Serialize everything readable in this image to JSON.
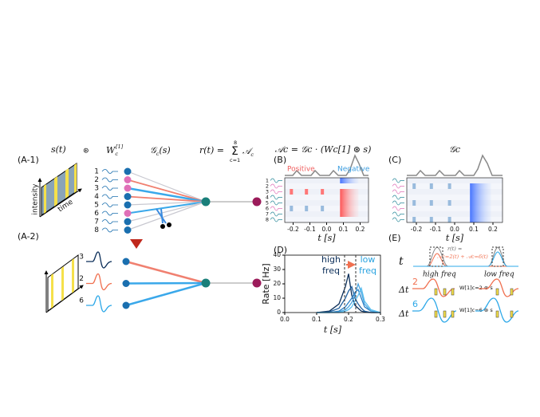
{
  "panel_a1": {
    "label": "(A-1)",
    "s": "s(t)",
    "conv": "⊛",
    "w": "W",
    "w_sub": "c",
    "w_sup": "[1]",
    "g": "𝒢",
    "g_sub": "c",
    "g_arg": "(s)",
    "r": "r(t) =",
    "sum": "Σ",
    "sum_top": "8",
    "sum_bot": "c=1",
    "a": "𝒜",
    "a_sub": "c",
    "intensity": "intensity",
    "time": "time",
    "channels": [
      "1",
      "2",
      "3",
      "4",
      "5",
      "6",
      "7",
      "8"
    ]
  },
  "panel_a2": {
    "label": "(A-2)",
    "channels": [
      "3",
      "2",
      "6"
    ]
  },
  "panel_b": {
    "label": "(B)",
    "title": "𝒜c = 𝒢c · (Wc[1] ⊛ s)",
    "positive": "Positive",
    "negative": "Negative",
    "channels": [
      "1",
      "2",
      "3",
      "4",
      "5",
      "6",
      "7",
      "8"
    ],
    "xticks": [
      "-0.2",
      "-0.1",
      "0.0",
      "0.1",
      "0.2"
    ],
    "xlabel": "t [s]"
  },
  "panel_c": {
    "label": "(C)",
    "title": "𝒢c",
    "xticks": [
      "-0.2",
      "-0.1",
      "0.0",
      "0.1",
      "0.2"
    ],
    "xlabel": "t [s]"
  },
  "panel_d": {
    "label": "(D)",
    "chart_data": {
      "type": "line",
      "ylabel": "Rate [Hz]",
      "xlabel": "t [s]",
      "xlim": [
        0,
        0.3
      ],
      "xticks": [
        {
          "value": 0,
          "label": "0.0"
        },
        0.1,
        0.2,
        0.3
      ],
      "ylim": [
        0,
        40
      ],
      "yticks": [
        0,
        10,
        20,
        30,
        40
      ],
      "x": [
        0.1,
        0.14,
        0.17,
        0.19,
        0.2,
        0.21,
        0.22,
        0.23,
        0.24,
        0.25,
        0.27,
        0.3
      ],
      "series": [
        {
          "color": "#0b2e59",
          "values": [
            0,
            1,
            6,
            18,
            27,
            12,
            5,
            3,
            1,
            0.5,
            0,
            0
          ]
        },
        {
          "color": "#1f5f9e",
          "values": [
            0,
            0.5,
            3,
            10,
            15,
            18,
            10,
            6,
            3,
            1,
            0,
            0
          ]
        },
        {
          "color": "#2b7fc4",
          "values": [
            0,
            0,
            1,
            4,
            7,
            10,
            14,
            16,
            10,
            4,
            1,
            0
          ]
        },
        {
          "color": "#4aa3df",
          "values": [
            0,
            0,
            0.5,
            2,
            4,
            7,
            12,
            20,
            14,
            6,
            1,
            0
          ]
        },
        {
          "color": "#5bc0f0",
          "values": [
            0,
            0,
            0,
            1,
            2,
            4,
            8,
            12,
            17,
            8,
            2,
            0
          ]
        }
      ],
      "annotations": [
        {
          "text": "high",
          "text2": "freq",
          "color": "#0b2e59"
        },
        {
          "text": "low",
          "text2": "freq",
          "color": "#29a3e0"
        }
      ]
    }
  },
  "panel_e": {
    "label": "(E)",
    "t": "t",
    "r": "r(t) ≈",
    "sum": "𝒜c=2(t) + 𝒜c=6(t)",
    "high": "high freq",
    "low": "low freq",
    "dt": "Δt",
    "c2": "2",
    "c6": "6",
    "w2": "W[1]c=2 ⊛ s",
    "w6": "W[1]c=6 ⊛ s"
  }
}
